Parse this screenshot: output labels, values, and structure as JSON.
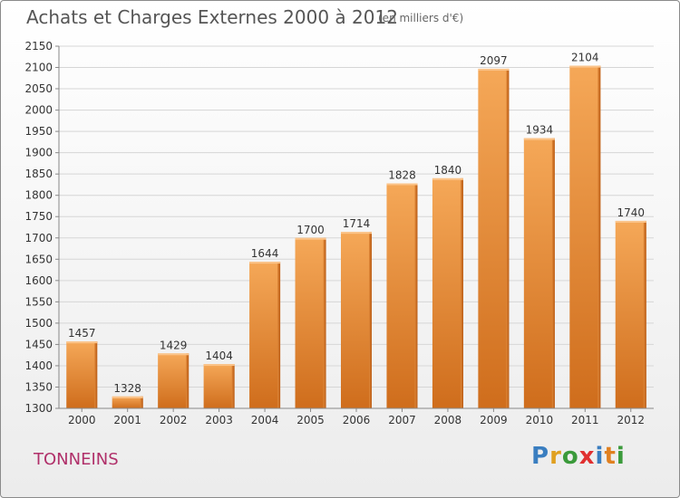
{
  "header": {
    "title": "Achats et Charges Externes 2000 à 2012",
    "subtitle": "(en milliers d'€)"
  },
  "footer": {
    "place": "TONNEINS",
    "brand_letters": [
      {
        "char": "P",
        "color": "#3a7ec0"
      },
      {
        "char": "r",
        "color": "#e0a020"
      },
      {
        "char": "o",
        "color": "#3a9a3a"
      },
      {
        "char": "x",
        "color": "#e03030"
      },
      {
        "char": "i",
        "color": "#3a7ec0"
      },
      {
        "char": "t",
        "color": "#e08020"
      },
      {
        "char": "i",
        "color": "#3a9a3a"
      }
    ]
  },
  "chart_data": {
    "type": "bar",
    "title": "Achats et Charges Externes 2000 à 2012",
    "subtitle": "(en milliers d'€)",
    "categories": [
      "2000",
      "2001",
      "2002",
      "2003",
      "2004",
      "2005",
      "2006",
      "2007",
      "2008",
      "2009",
      "2010",
      "2011",
      "2012"
    ],
    "values": [
      1457,
      1328,
      1429,
      1404,
      1644,
      1700,
      1714,
      1828,
      1840,
      2097,
      1934,
      2104,
      1740
    ],
    "ylim": [
      1300,
      2150
    ],
    "yticks": [
      1300,
      1350,
      1400,
      1450,
      1500,
      1550,
      1600,
      1650,
      1700,
      1750,
      1800,
      1850,
      1900,
      1950,
      2000,
      2050,
      2100,
      2150
    ],
    "grid": true,
    "bar_color": "#f0a050"
  }
}
